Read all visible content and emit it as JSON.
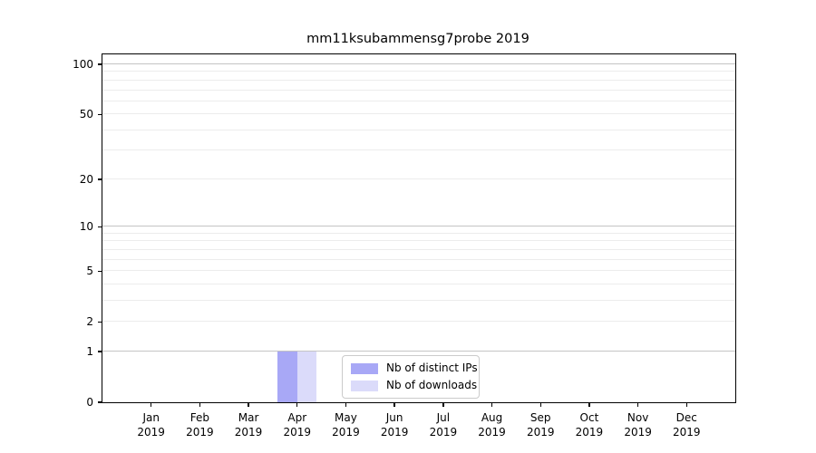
{
  "title": "mm11ksubammensg7probe 2019",
  "chart_data": {
    "type": "bar",
    "title": "mm11ksubammensg7probe 2019",
    "categories": [
      "Jan 2019",
      "Feb 2019",
      "Mar 2019",
      "Apr 2019",
      "May 2019",
      "Jun 2019",
      "Jul 2019",
      "Aug 2019",
      "Sep 2019",
      "Oct 2019",
      "Nov 2019",
      "Dec 2019"
    ],
    "series": [
      {
        "name": "Nb of distinct IPs",
        "color": "#a8a8f6",
        "values": [
          0,
          0,
          0,
          1,
          0,
          0,
          0,
          0,
          0,
          0,
          0,
          0
        ]
      },
      {
        "name": "Nb of downloads",
        "color": "#dbdbfa",
        "values": [
          0,
          0,
          0,
          1,
          0,
          0,
          0,
          0,
          0,
          0,
          0,
          0
        ]
      }
    ],
    "xlabel": "",
    "ylabel": "",
    "yscale": "log1p",
    "yticks": [
      0,
      1,
      2,
      5,
      10,
      20,
      50,
      100
    ],
    "ylim": [
      0,
      115
    ],
    "grid": true,
    "grid_major_color": "#c4c4c4",
    "grid_minor_color": "#ececec",
    "legend_position": "lower center",
    "legend_labels": [
      "Nb of distinct IPs",
      "Nb of downloads"
    ]
  }
}
